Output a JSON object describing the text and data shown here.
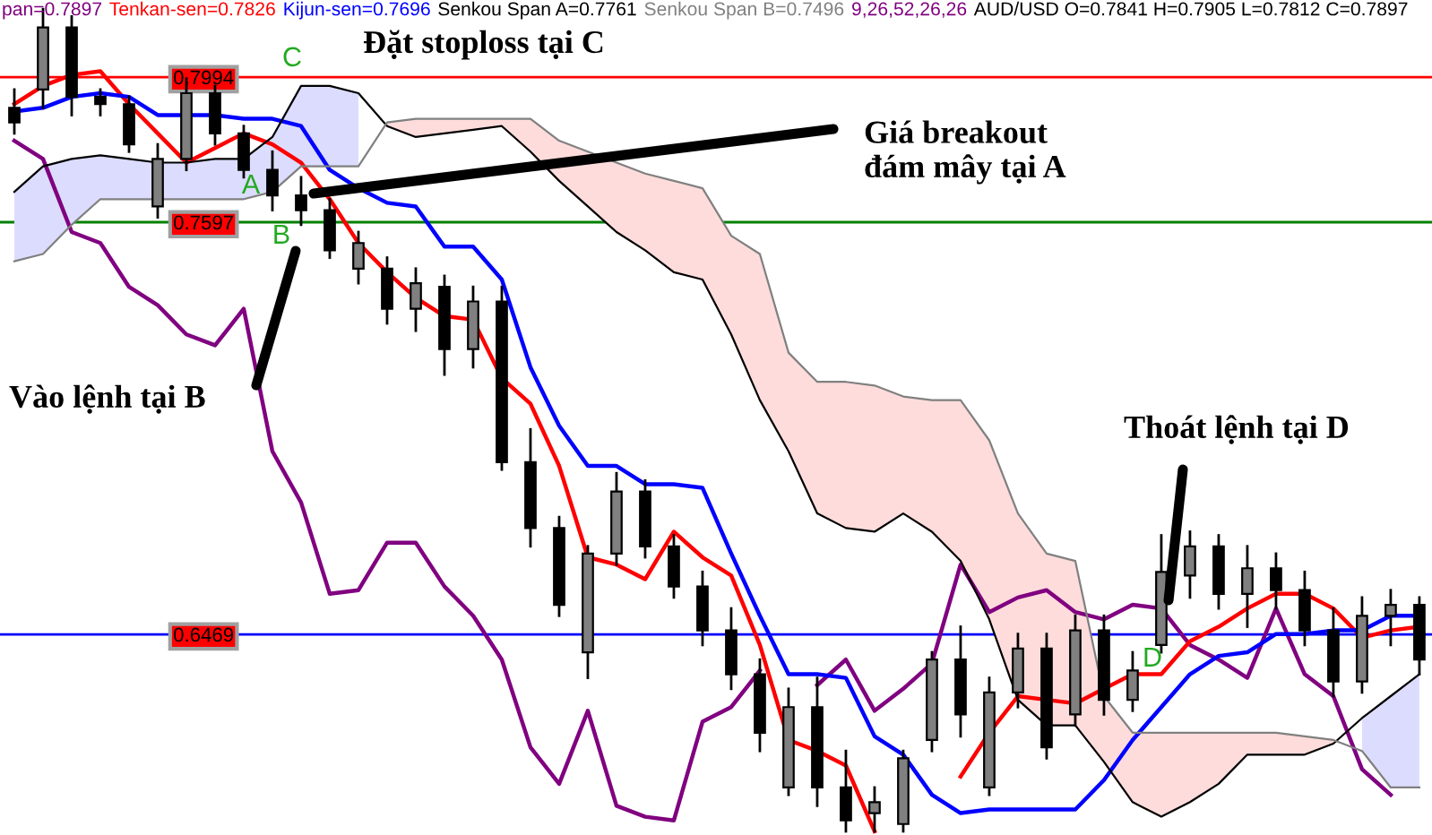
{
  "chart_data": {
    "type": "candlestick",
    "title": "AUD/USD O=0.7841 H=0.7905 L=0.7812 C=0.7897",
    "subtitle": "9,26,52,26,26",
    "categories": [
      null,
      null,
      null,
      null,
      null,
      null,
      null,
      null,
      null,
      null,
      null,
      null,
      null,
      null,
      null,
      null,
      null,
      null,
      null,
      null,
      null,
      null,
      null,
      null,
      null,
      null,
      null,
      null,
      null,
      null,
      null,
      null,
      null,
      null,
      null,
      null,
      null,
      null,
      null,
      null,
      null,
      null,
      null,
      null,
      null,
      null,
      null,
      null,
      null,
      null
    ],
    "ohlc": [
      [
        0.791,
        0.796,
        0.784,
        0.787
      ],
      [
        0.796,
        0.818,
        0.791,
        0.813
      ],
      [
        0.813,
        0.816,
        0.789,
        0.794
      ],
      [
        0.794,
        0.796,
        0.789,
        0.792
      ],
      [
        0.792,
        0.794,
        0.779,
        0.781
      ],
      [
        0.764,
        0.781,
        0.761,
        0.777
      ],
      [
        0.777,
        0.799,
        0.774,
        0.795
      ],
      [
        0.795,
        0.797,
        0.781,
        0.784
      ],
      [
        0.784,
        0.786,
        0.772,
        0.774
      ],
      [
        0.774,
        0.779,
        0.763,
        0.767
      ],
      [
        0.767,
        0.772,
        0.759,
        0.763
      ],
      [
        0.763,
        0.766,
        0.75,
        0.752
      ],
      [
        0.747,
        0.757,
        0.743,
        0.754
      ],
      [
        0.747,
        0.75,
        0.732,
        0.736
      ],
      [
        0.736,
        0.747,
        0.73,
        0.743
      ],
      [
        0.742,
        0.745,
        0.718,
        0.725
      ],
      [
        0.725,
        0.742,
        0.72,
        0.738
      ],
      [
        0.738,
        0.742,
        0.692,
        0.694
      ],
      [
        0.694,
        0.703,
        0.671,
        0.676
      ],
      [
        0.676,
        0.679,
        0.652,
        0.655
      ],
      [
        0.642,
        0.671,
        0.635,
        0.669
      ],
      [
        0.669,
        0.691,
        0.666,
        0.686
      ],
      [
        0.686,
        0.689,
        0.668,
        0.671
      ],
      [
        0.671,
        0.674,
        0.657,
        0.66
      ],
      [
        0.66,
        0.664,
        0.644,
        0.648
      ],
      [
        0.648,
        0.654,
        0.632,
        0.636
      ],
      [
        0.636,
        0.64,
        0.615,
        0.62
      ],
      [
        0.605,
        0.632,
        0.603,
        0.627
      ],
      [
        0.627,
        0.635,
        0.6,
        0.605
      ],
      [
        0.605,
        0.615,
        0.593,
        0.596
      ],
      [
        0.598,
        0.605,
        0.593,
        0.601
      ],
      [
        0.595,
        0.615,
        0.593,
        0.613
      ],
      [
        0.618,
        0.642,
        0.615,
        0.64
      ],
      [
        0.64,
        0.649,
        0.619,
        0.625
      ],
      [
        0.605,
        0.635,
        0.603,
        0.631
      ],
      [
        0.631,
        0.647,
        0.627,
        0.643
      ],
      [
        0.643,
        0.647,
        0.613,
        0.616
      ],
      [
        0.625,
        0.652,
        0.622,
        0.648
      ],
      [
        0.648,
        0.652,
        0.625,
        0.629
      ],
      [
        0.629,
        0.642,
        0.626,
        0.637
      ],
      [
        0.644,
        0.674,
        0.642,
        0.664
      ],
      [
        0.663,
        0.675,
        0.657,
        0.671
      ],
      [
        0.671,
        0.674,
        0.654,
        0.658
      ],
      [
        0.658,
        0.671,
        0.649,
        0.665
      ],
      [
        0.665,
        0.669,
        0.654,
        0.659
      ],
      [
        0.659,
        0.664,
        0.644,
        0.648
      ],
      [
        0.648,
        0.654,
        0.63,
        0.634
      ],
      [
        0.634,
        0.657,
        0.631,
        0.652
      ],
      [
        0.652,
        0.659,
        0.644,
        0.655
      ],
      [
        0.655,
        0.657,
        0.636,
        0.64
      ]
    ],
    "colors": [
      "#000000",
      "#808080",
      "#000000",
      "#000000",
      "#000000",
      "#808080",
      "#808080",
      "#000000",
      "#000000",
      "#000000",
      "#000000",
      "#000000",
      "#808080",
      "#000000",
      "#808080",
      "#000000",
      "#808080",
      "#000000",
      "#000000",
      "#000000",
      "#808080",
      "#808080",
      "#000000",
      "#000000",
      "#000000",
      "#000000",
      "#000000",
      "#808080",
      "#000000",
      "#000000",
      "#808080",
      "#808080",
      "#808080",
      "#000000",
      "#808080",
      "#808080",
      "#000000",
      "#808080",
      "#000000",
      "#808080",
      "#808080",
      "#808080",
      "#000000",
      "#808080",
      "#000000",
      "#000000",
      "#000000",
      "#808080",
      "#808080",
      "#000000"
    ],
    "series": [
      {
        "name": "pan=0.7897",
        "type": "line",
        "color": "#800080",
        "values": [
          0.782,
          0.777,
          0.757,
          0.754,
          0.742,
          0.737,
          0.729,
          0.726,
          0.736,
          0.697,
          0.683,
          0.658,
          0.659,
          0.672,
          0.672,
          0.66,
          0.652,
          0.64,
          0.616,
          0.606,
          0.626,
          0.6,
          0.597,
          0.596,
          0.623,
          0.627,
          0.637,
          null,
          0.633,
          0.64,
          0.626,
          0.632,
          0.639,
          0.666,
          0.653,
          0.657,
          0.659,
          0.653,
          0.651,
          0.655,
          0.654,
          0.644,
          0.64,
          0.635,
          0.654,
          0.636,
          0.63,
          0.61,
          0.603,
          null
        ]
      },
      {
        "name": "Tenkan-sen=0.7826",
        "type": "line",
        "color": "#ff0000",
        "values": [
          0.792,
          0.797,
          0.8,
          0.801,
          0.792,
          0.784,
          0.776,
          0.78,
          0.784,
          0.781,
          0.776,
          0.766,
          0.754,
          0.746,
          0.739,
          0.734,
          0.733,
          0.717,
          0.71,
          0.693,
          0.668,
          0.666,
          0.662,
          0.675,
          0.668,
          0.663,
          0.644,
          0.618,
          0.615,
          0.611,
          0.593,
          null,
          null,
          0.608,
          0.62,
          0.63,
          0.629,
          0.628,
          0.632,
          0.636,
          0.636,
          0.645,
          0.649,
          0.654,
          0.658,
          0.658,
          0.654,
          0.646,
          0.648,
          0.649
        ]
      },
      {
        "name": "Kijun-sen=0.7696",
        "type": "line",
        "color": "#0000ff",
        "values": [
          0.79,
          0.791,
          0.794,
          0.795,
          0.794,
          0.789,
          0.789,
          0.789,
          0.788,
          0.788,
          0.786,
          0.774,
          0.769,
          0.765,
          0.764,
          0.753,
          0.753,
          0.744,
          0.72,
          0.704,
          0.693,
          0.693,
          0.688,
          0.688,
          0.687,
          0.669,
          0.652,
          0.636,
          0.636,
          0.635,
          0.619,
          0.614,
          0.603,
          0.598,
          0.599,
          0.599,
          0.599,
          0.599,
          0.607,
          0.618,
          0.627,
          0.636,
          0.641,
          0.642,
          0.647,
          0.647,
          0.648,
          0.648,
          0.652,
          0.652
        ]
      },
      {
        "name": "Senkou Span A=0.7761",
        "type": "line",
        "color": "#000000",
        "values": [
          0.768,
          0.775,
          0.777,
          0.778,
          0.777,
          0.776,
          0.776,
          0.777,
          0.777,
          0.783,
          0.797,
          0.797,
          0.795,
          0.786,
          0.783,
          0.784,
          0.785,
          0.786,
          0.779,
          0.771,
          0.764,
          0.757,
          0.752,
          0.746,
          0.744,
          0.729,
          0.711,
          0.697,
          0.68,
          0.676,
          0.675,
          0.68,
          0.675,
          0.667,
          0.651,
          0.629,
          0.622,
          0.622,
          0.612,
          0.601,
          0.597,
          0.601,
          0.606,
          0.614,
          0.614,
          0.614,
          0.617,
          0.624,
          0.63,
          0.636
        ],
        "lower": [
          0.749,
          0.751,
          0.759,
          0.766,
          0.766,
          0.766,
          0.766,
          0.766,
          0.766,
          0.768,
          0.775,
          0.775,
          0.775,
          null,
          null,
          null,
          null,
          null,
          null,
          null,
          null,
          null,
          null,
          null,
          null,
          null,
          null,
          null,
          null,
          null,
          null,
          null,
          null,
          null,
          null,
          null,
          null,
          null,
          null,
          null,
          null,
          null,
          null,
          null,
          null,
          null,
          null,
          0.615,
          0.605,
          0.605
        ],
        "upper": [
          0.768,
          0.775,
          0.777,
          0.778,
          0.777,
          0.776,
          0.776,
          0.777,
          0.777,
          0.783,
          0.797,
          0.797,
          0.795,
          null,
          null,
          null,
          null,
          null,
          null,
          null,
          null,
          null,
          null,
          null,
          null,
          null,
          null,
          null,
          null,
          null,
          null,
          null,
          null,
          null,
          null,
          null,
          null,
          null,
          null,
          null,
          null,
          null,
          null,
          null,
          null,
          null,
          null,
          0.624,
          0.63,
          0.636
        ]
      },
      {
        "name": "Senkou Span B=0.7496",
        "type": "line",
        "color": "#808080",
        "values": [
          0.749,
          0.751,
          0.759,
          0.766,
          0.766,
          0.766,
          0.766,
          0.766,
          0.766,
          0.768,
          0.775,
          0.775,
          0.775,
          0.787,
          0.788,
          0.788,
          0.788,
          0.788,
          0.788,
          0.782,
          0.779,
          0.776,
          0.773,
          0.771,
          0.769,
          0.756,
          0.751,
          0.724,
          0.716,
          0.716,
          0.715,
          0.712,
          0.711,
          0.711,
          0.7,
          0.68,
          0.669,
          0.667,
          0.63,
          0.62,
          0.62,
          0.62,
          0.62,
          0.62,
          0.62,
          0.619,
          0.618,
          0.615,
          0.605,
          0.605
        ],
        "lower": [
          null,
          null,
          null,
          null,
          null,
          null,
          null,
          null,
          null,
          null,
          null,
          null,
          null,
          0.786,
          0.783,
          0.784,
          0.785,
          0.786,
          0.779,
          0.771,
          0.764,
          0.757,
          0.752,
          0.746,
          0.744,
          0.729,
          0.711,
          0.697,
          0.68,
          0.676,
          0.675,
          0.68,
          0.675,
          0.667,
          0.651,
          0.629,
          0.622,
          0.622,
          0.612,
          0.601,
          0.597,
          0.601,
          0.606,
          0.614,
          0.614,
          0.614,
          0.617,
          null,
          null,
          null
        ],
        "upper": [
          null,
          null,
          null,
          null,
          null,
          null,
          null,
          null,
          null,
          null,
          null,
          null,
          null,
          0.787,
          0.788,
          0.788,
          0.788,
          0.788,
          0.788,
          0.782,
          0.779,
          0.776,
          0.773,
          0.771,
          0.769,
          0.756,
          0.751,
          0.724,
          0.716,
          0.716,
          0.715,
          0.712,
          0.711,
          0.711,
          0.7,
          0.68,
          0.669,
          0.667,
          0.63,
          0.62,
          0.62,
          0.62,
          0.62,
          0.62,
          0.62,
          0.619,
          0.618,
          null,
          null,
          null
        ]
      }
    ],
    "ylim": [
      0.592,
      0.8205
    ],
    "yticks": [
      0.6469,
      0.7597,
      0.7994
    ],
    "tick_labels": "y",
    "ref_lines": [
      {
        "axis": "y",
        "value": 0.7994,
        "color": "#ff0000"
      },
      {
        "axis": "y",
        "value": 0.7597,
        "color": "#008000"
      },
      {
        "axis": "y",
        "value": 0.6469,
        "color": "#0000ff"
      }
    ],
    "annotations": [
      "Đặt stoploss tại C",
      "Giá breakout\nđám mây tại A",
      "Vào lệnh tại B",
      "Thoát lệnh tại D",
      "C",
      "A",
      "B",
      "D"
    ]
  }
}
